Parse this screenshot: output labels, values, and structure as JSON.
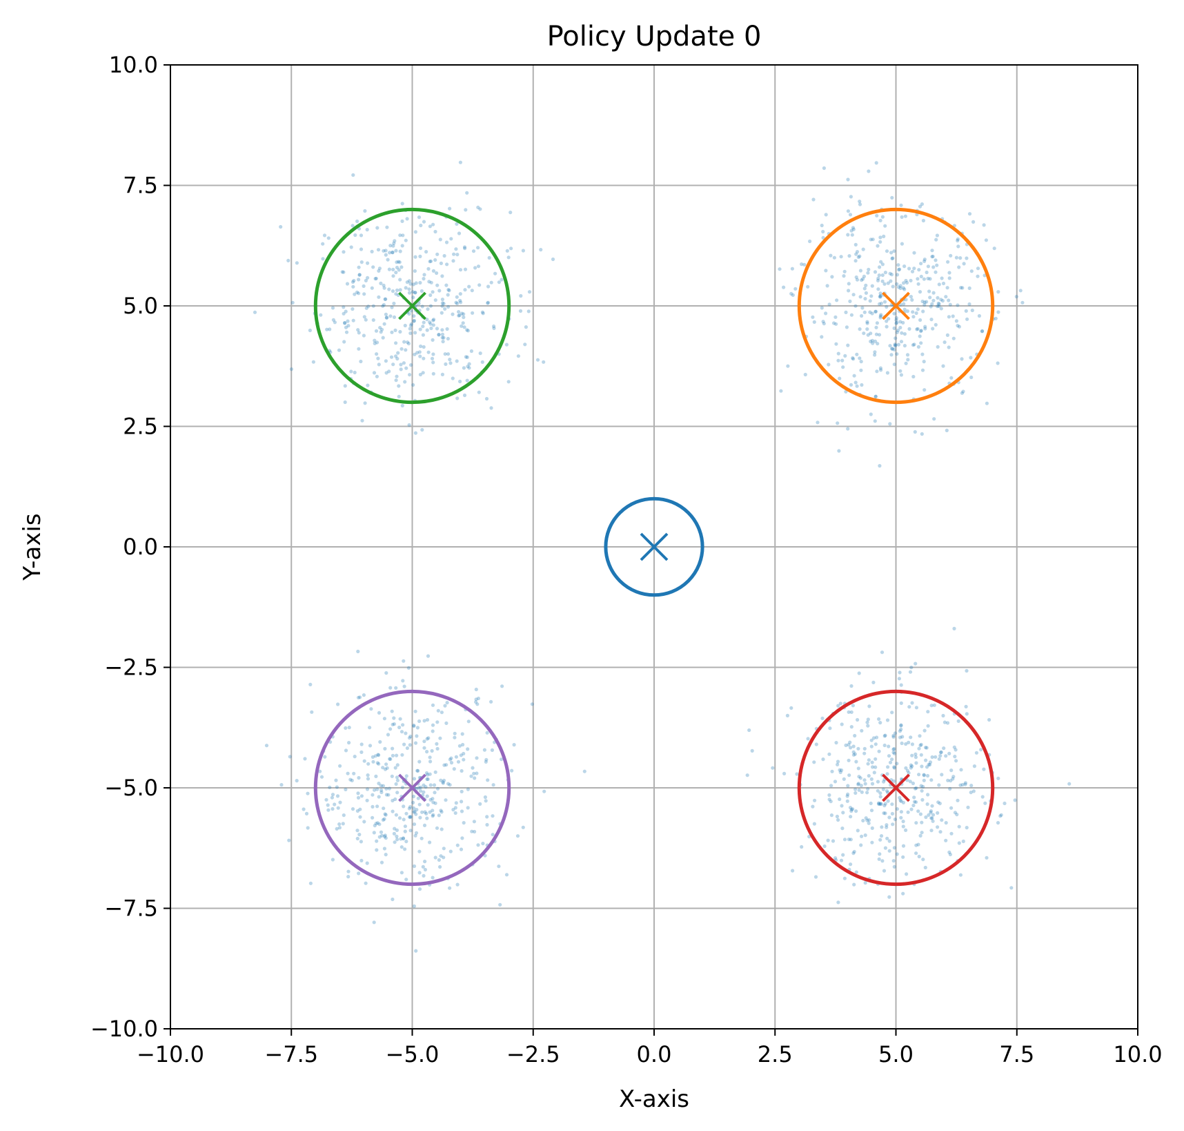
{
  "chart_data": {
    "type": "scatter",
    "title": "Policy Update 0",
    "xlabel": "X-axis",
    "ylabel": "Y-axis",
    "xlim": [
      -10,
      10
    ],
    "ylim": [
      -10,
      10
    ],
    "grid": true,
    "x_ticks": [
      -10,
      -7.5,
      -5,
      -2.5,
      0,
      2.5,
      5,
      7.5,
      10
    ],
    "y_ticks": [
      -10,
      -7.5,
      -5,
      -2.5,
      0,
      2.5,
      5,
      7.5,
      10
    ],
    "x_tick_labels": [
      "−10.0",
      "−7.5",
      "−5.0",
      "−2.5",
      "0.0",
      "2.5",
      "5.0",
      "7.5",
      "10.0"
    ],
    "y_tick_labels": [
      "−10.0",
      "−7.5",
      "−5.0",
      "−2.5",
      "0.0",
      "2.5",
      "5.0",
      "7.5",
      "10.0"
    ],
    "sample_color": "#1f77b4",
    "sample_clusters": [
      {
        "center": [
          -5,
          5
        ],
        "spread": 1.0
      },
      {
        "center": [
          5,
          5
        ],
        "spread": 1.0
      },
      {
        "center": [
          -5,
          -5
        ],
        "spread": 1.0
      },
      {
        "center": [
          5,
          -5
        ],
        "spread": 1.0
      }
    ],
    "goals": [
      {
        "center": [
          0,
          0
        ],
        "radius": 1,
        "color": "#1f77b4"
      },
      {
        "center": [
          5,
          5
        ],
        "radius": 2,
        "color": "#ff7f0e"
      },
      {
        "center": [
          -5,
          5
        ],
        "radius": 2,
        "color": "#2ca02c"
      },
      {
        "center": [
          5,
          -5
        ],
        "radius": 2,
        "color": "#d62728"
      },
      {
        "center": [
          -5,
          -5
        ],
        "radius": 2,
        "color": "#9467bd"
      }
    ]
  }
}
